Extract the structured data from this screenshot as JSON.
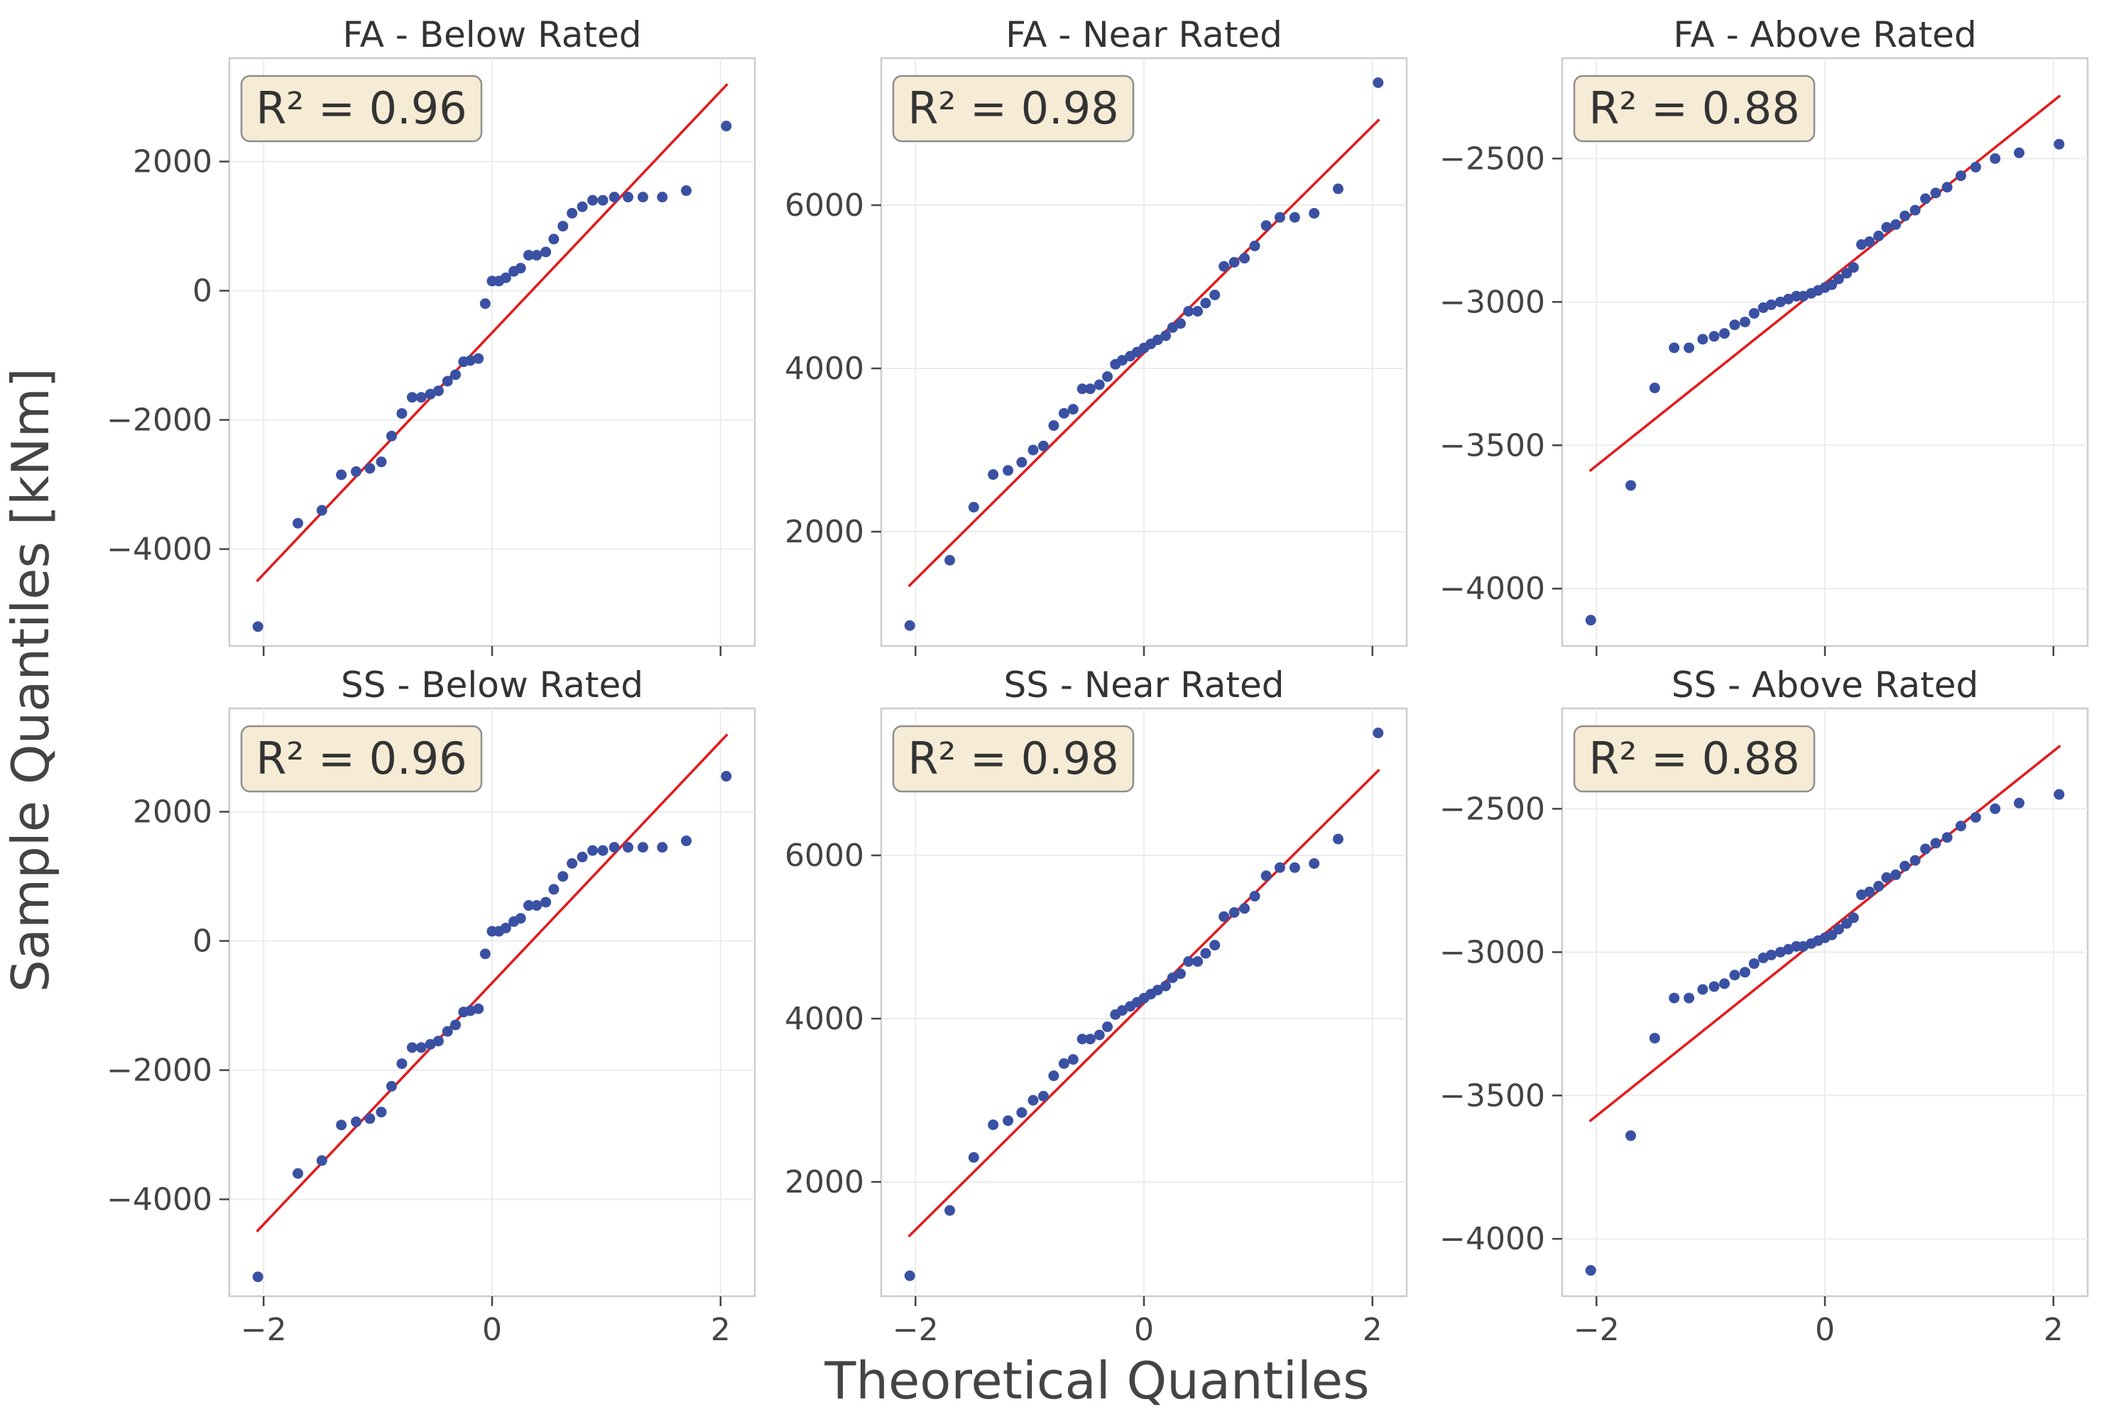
{
  "xlabel": "Theoretical Quantiles",
  "ylabel": "Sample Quantiles [kNm]",
  "chart_data": [
    {
      "type": "scatter",
      "title": "FA - Below Rated",
      "annotation": "R² = 0.96",
      "xlim": [
        -2.3,
        2.3
      ],
      "ylim": [
        -5500,
        3600
      ],
      "xticks": [
        -2,
        0,
        2
      ],
      "yticks": [
        -4000,
        -2000,
        0,
        2000
      ],
      "fit_line": {
        "x": [
          -2.06,
          2.06
        ],
        "y": [
          -4500,
          3200
        ]
      },
      "points": {
        "x": [
          -2.05,
          -1.7,
          -1.49,
          -1.32,
          -1.19,
          -1.07,
          -0.97,
          -0.88,
          -0.79,
          -0.7,
          -0.62,
          -0.54,
          -0.47,
          -0.39,
          -0.32,
          -0.25,
          -0.19,
          -0.12,
          -0.06,
          0.0,
          0.06,
          0.12,
          0.19,
          0.25,
          0.32,
          0.39,
          0.47,
          0.54,
          0.62,
          0.7,
          0.79,
          0.88,
          0.97,
          1.07,
          1.19,
          1.32,
          1.49,
          1.7,
          2.05
        ],
        "y": [
          -5200,
          -3600,
          -3400,
          -2850,
          -2800,
          -2750,
          -2650,
          -2250,
          -1900,
          -1650,
          -1650,
          -1600,
          -1550,
          -1400,
          -1300,
          -1100,
          -1080,
          -1050,
          -200,
          150,
          150,
          200,
          300,
          350,
          550,
          550,
          600,
          800,
          1000,
          1200,
          1300,
          1400,
          1400,
          1450,
          1450,
          1450,
          1450,
          1550,
          2550
        ]
      }
    },
    {
      "type": "scatter",
      "title": "FA - Near Rated",
      "annotation": "R² = 0.98",
      "xlim": [
        -2.3,
        2.3
      ],
      "ylim": [
        600,
        7800
      ],
      "xticks": [
        -2,
        0,
        2
      ],
      "yticks": [
        2000,
        4000,
        6000
      ],
      "fit_line": {
        "x": [
          -2.06,
          2.06
        ],
        "y": [
          1330,
          7050
        ]
      },
      "points": {
        "x": [
          -2.05,
          -1.7,
          -1.49,
          -1.32,
          -1.19,
          -1.07,
          -0.97,
          -0.88,
          -0.79,
          -0.7,
          -0.62,
          -0.54,
          -0.47,
          -0.39,
          -0.32,
          -0.25,
          -0.19,
          -0.12,
          -0.06,
          0.0,
          0.06,
          0.12,
          0.19,
          0.25,
          0.32,
          0.39,
          0.47,
          0.54,
          0.62,
          0.7,
          0.79,
          0.88,
          0.97,
          1.07,
          1.19,
          1.32,
          1.49,
          1.7,
          2.05
        ],
        "y": [
          850,
          1650,
          2300,
          2700,
          2750,
          2850,
          3000,
          3050,
          3300,
          3450,
          3500,
          3750,
          3750,
          3800,
          3900,
          4050,
          4100,
          4150,
          4200,
          4250,
          4300,
          4350,
          4400,
          4500,
          4550,
          4700,
          4700,
          4800,
          4900,
          5250,
          5300,
          5350,
          5500,
          5750,
          5850,
          5850,
          5900,
          6200,
          7500
        ]
      }
    },
    {
      "type": "scatter",
      "title": "FA - Above Rated",
      "annotation": "R² = 0.88",
      "xlim": [
        -2.3,
        2.3
      ],
      "ylim": [
        -4200,
        -2150
      ],
      "xticks": [
        -2,
        0,
        2
      ],
      "yticks": [
        -4000,
        -3500,
        -3000,
        -2500
      ],
      "fit_line": {
        "x": [
          -2.06,
          2.06
        ],
        "y": [
          -3590,
          -2280
        ]
      },
      "points": {
        "x": [
          -2.05,
          -1.7,
          -1.49,
          -1.32,
          -1.19,
          -1.07,
          -0.97,
          -0.88,
          -0.79,
          -0.7,
          -0.62,
          -0.54,
          -0.47,
          -0.39,
          -0.32,
          -0.25,
          -0.19,
          -0.12,
          -0.06,
          0.0,
          0.06,
          0.12,
          0.19,
          0.25,
          0.32,
          0.39,
          0.47,
          0.54,
          0.62,
          0.7,
          0.79,
          0.88,
          0.97,
          1.07,
          1.19,
          1.32,
          1.49,
          1.7,
          2.05
        ],
        "y": [
          -4110,
          -3640,
          -3300,
          -3160,
          -3160,
          -3130,
          -3120,
          -3110,
          -3080,
          -3070,
          -3040,
          -3020,
          -3010,
          -3000,
          -2990,
          -2980,
          -2980,
          -2970,
          -2960,
          -2950,
          -2940,
          -2920,
          -2900,
          -2880,
          -2800,
          -2790,
          -2770,
          -2740,
          -2730,
          -2700,
          -2680,
          -2640,
          -2620,
          -2600,
          -2560,
          -2530,
          -2500,
          -2480,
          -2450
        ]
      }
    },
    {
      "type": "scatter",
      "title": "SS - Below Rated",
      "annotation": "R² = 0.96",
      "xlim": [
        -2.3,
        2.3
      ],
      "ylim": [
        -5500,
        3600
      ],
      "xticks": [
        -2,
        0,
        2
      ],
      "yticks": [
        -4000,
        -2000,
        0,
        2000
      ],
      "fit_line": {
        "x": [
          -2.06,
          2.06
        ],
        "y": [
          -4500,
          3200
        ]
      },
      "points": {
        "x": [
          -2.05,
          -1.7,
          -1.49,
          -1.32,
          -1.19,
          -1.07,
          -0.97,
          -0.88,
          -0.79,
          -0.7,
          -0.62,
          -0.54,
          -0.47,
          -0.39,
          -0.32,
          -0.25,
          -0.19,
          -0.12,
          -0.06,
          0.0,
          0.06,
          0.12,
          0.19,
          0.25,
          0.32,
          0.39,
          0.47,
          0.54,
          0.62,
          0.7,
          0.79,
          0.88,
          0.97,
          1.07,
          1.19,
          1.32,
          1.49,
          1.7,
          2.05
        ],
        "y": [
          -5200,
          -3600,
          -3400,
          -2850,
          -2800,
          -2750,
          -2650,
          -2250,
          -1900,
          -1650,
          -1650,
          -1600,
          -1550,
          -1400,
          -1300,
          -1100,
          -1080,
          -1050,
          -200,
          150,
          150,
          200,
          300,
          350,
          550,
          550,
          600,
          800,
          1000,
          1200,
          1300,
          1400,
          1400,
          1450,
          1450,
          1450,
          1450,
          1550,
          2550
        ]
      }
    },
    {
      "type": "scatter",
      "title": "SS - Near Rated",
      "annotation": "R² = 0.98",
      "xlim": [
        -2.3,
        2.3
      ],
      "ylim": [
        600,
        7800
      ],
      "xticks": [
        -2,
        0,
        2
      ],
      "yticks": [
        2000,
        4000,
        6000
      ],
      "fit_line": {
        "x": [
          -2.06,
          2.06
        ],
        "y": [
          1330,
          7050
        ]
      },
      "points": {
        "x": [
          -2.05,
          -1.7,
          -1.49,
          -1.32,
          -1.19,
          -1.07,
          -0.97,
          -0.88,
          -0.79,
          -0.7,
          -0.62,
          -0.54,
          -0.47,
          -0.39,
          -0.32,
          -0.25,
          -0.19,
          -0.12,
          -0.06,
          0.0,
          0.06,
          0.12,
          0.19,
          0.25,
          0.32,
          0.39,
          0.47,
          0.54,
          0.62,
          0.7,
          0.79,
          0.88,
          0.97,
          1.07,
          1.19,
          1.32,
          1.49,
          1.7,
          2.05
        ],
        "y": [
          850,
          1650,
          2300,
          2700,
          2750,
          2850,
          3000,
          3050,
          3300,
          3450,
          3500,
          3750,
          3750,
          3800,
          3900,
          4050,
          4100,
          4150,
          4200,
          4250,
          4300,
          4350,
          4400,
          4500,
          4550,
          4700,
          4700,
          4800,
          4900,
          5250,
          5300,
          5350,
          5500,
          5750,
          5850,
          5850,
          5900,
          6200,
          7500
        ]
      }
    },
    {
      "type": "scatter",
      "title": "SS - Above Rated",
      "annotation": "R² = 0.88",
      "xlim": [
        -2.3,
        2.3
      ],
      "ylim": [
        -4200,
        -2150
      ],
      "xticks": [
        -2,
        0,
        2
      ],
      "yticks": [
        -4000,
        -3500,
        -3000,
        -2500
      ],
      "fit_line": {
        "x": [
          -2.06,
          2.06
        ],
        "y": [
          -3590,
          -2280
        ]
      },
      "points": {
        "x": [
          -2.05,
          -1.7,
          -1.49,
          -1.32,
          -1.19,
          -1.07,
          -0.97,
          -0.88,
          -0.79,
          -0.7,
          -0.62,
          -0.54,
          -0.47,
          -0.39,
          -0.32,
          -0.25,
          -0.19,
          -0.12,
          -0.06,
          0.0,
          0.06,
          0.12,
          0.19,
          0.25,
          0.32,
          0.39,
          0.47,
          0.54,
          0.62,
          0.7,
          0.79,
          0.88,
          0.97,
          1.07,
          1.19,
          1.32,
          1.49,
          1.7,
          2.05
        ],
        "y": [
          -4110,
          -3640,
          -3300,
          -3160,
          -3160,
          -3130,
          -3120,
          -3110,
          -3080,
          -3070,
          -3040,
          -3020,
          -3010,
          -3000,
          -2990,
          -2980,
          -2980,
          -2970,
          -2960,
          -2950,
          -2940,
          -2920,
          -2900,
          -2880,
          -2800,
          -2790,
          -2770,
          -2740,
          -2730,
          -2700,
          -2680,
          -2640,
          -2620,
          -2600,
          -2560,
          -2530,
          -2500,
          -2480,
          -2450
        ]
      }
    }
  ]
}
